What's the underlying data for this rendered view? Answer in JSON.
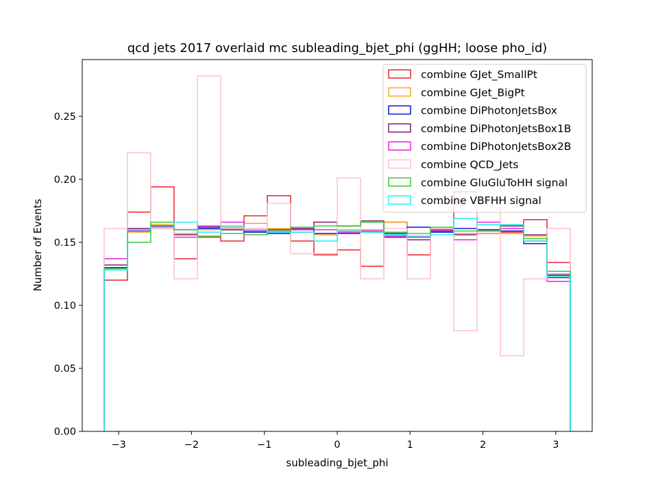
{
  "chart_data": {
    "type": "histogram-step",
    "title": "qcd jets 2017 overlaid mc subleading_bjet_phi (ggHH; loose pho_id)",
    "xlabel": "subleading_bjet_phi",
    "ylabel": "Number of Events",
    "xlim": [
      -3.5,
      3.5
    ],
    "ylim": [
      0,
      0.295
    ],
    "xticks": [
      -3,
      -2,
      -1,
      0,
      1,
      2,
      3
    ],
    "xtick_labels": [
      "−3",
      "−2",
      "−1",
      "0",
      "1",
      "2",
      "3"
    ],
    "yticks": [
      0.0,
      0.05,
      0.1,
      0.15,
      0.2,
      0.25
    ],
    "ytick_labels": [
      "0.00",
      "0.05",
      "0.10",
      "0.15",
      "0.20",
      "0.25"
    ],
    "legend_position": "upper-right",
    "grid": false,
    "bin_edges": [
      -3.2,
      -2.88,
      -2.56,
      -2.24,
      -1.92,
      -1.6,
      -1.28,
      -0.96,
      -0.64,
      -0.32,
      0.0,
      0.32,
      0.64,
      0.96,
      1.28,
      1.6,
      1.92,
      2.24,
      2.56,
      2.88,
      3.2
    ],
    "series": [
      {
        "name": "combine GJet_SmallPt",
        "color": "#e8232a",
        "values": [
          0.12,
          0.174,
          0.194,
          0.137,
          0.154,
          0.151,
          0.171,
          0.187,
          0.151,
          0.14,
          0.144,
          0.131,
          0.166,
          0.14,
          0.16,
          0.19,
          0.157,
          0.158,
          0.168,
          0.134
        ]
      },
      {
        "name": "combine GJet_BigPt",
        "color": "#f5a623",
        "values": [
          0.13,
          0.158,
          0.164,
          0.157,
          0.16,
          0.162,
          0.165,
          0.161,
          0.158,
          0.156,
          0.16,
          0.16,
          0.166,
          0.155,
          0.158,
          0.157,
          0.157,
          0.157,
          0.155,
          0.125
        ]
      },
      {
        "name": "combine DiPhotonJetsBox",
        "color": "#1010e0",
        "values": [
          0.13,
          0.159,
          0.161,
          0.16,
          0.161,
          0.16,
          0.158,
          0.157,
          0.16,
          0.157,
          0.157,
          0.158,
          0.157,
          0.162,
          0.158,
          0.161,
          0.16,
          0.159,
          0.149,
          0.124
        ]
      },
      {
        "name": "combine DiPhotonJetsBox1B",
        "color": "#7b1e6e",
        "values": [
          0.132,
          0.161,
          0.163,
          0.156,
          0.162,
          0.16,
          0.159,
          0.16,
          0.161,
          0.166,
          0.163,
          0.167,
          0.154,
          0.152,
          0.159,
          0.156,
          0.159,
          0.163,
          0.156,
          0.122
        ]
      },
      {
        "name": "combine DiPhotonJetsBox2B",
        "color": "#e020e0",
        "values": [
          0.137,
          0.159,
          0.161,
          0.154,
          0.163,
          0.166,
          0.159,
          0.158,
          0.16,
          0.16,
          0.158,
          0.159,
          0.155,
          0.154,
          0.16,
          0.152,
          0.166,
          0.161,
          0.151,
          0.119
        ]
      },
      {
        "name": "combine QCD_Jets",
        "color": "#ffc0cb",
        "values": [
          0.161,
          0.221,
          0.161,
          0.121,
          0.282,
          0.161,
          0.161,
          0.181,
          0.141,
          0.141,
          0.201,
          0.121,
          0.161,
          0.121,
          0.161,
          0.08,
          0.201,
          0.06,
          0.121,
          0.161
        ]
      },
      {
        "name": "combine GluGluToHH signal",
        "color": "#3cc83c",
        "values": [
          0.129,
          0.15,
          0.166,
          0.16,
          0.155,
          0.157,
          0.156,
          0.159,
          0.162,
          0.163,
          0.163,
          0.166,
          0.158,
          0.157,
          0.162,
          0.159,
          0.159,
          0.164,
          0.153,
          0.127
        ]
      },
      {
        "name": "combine VBFHH signal",
        "color": "#20f0f0",
        "values": [
          0.128,
          0.16,
          0.162,
          0.166,
          0.158,
          0.163,
          0.16,
          0.158,
          0.158,
          0.151,
          0.159,
          0.158,
          0.156,
          0.155,
          0.156,
          0.169,
          0.164,
          0.164,
          0.151,
          0.123
        ]
      }
    ]
  }
}
